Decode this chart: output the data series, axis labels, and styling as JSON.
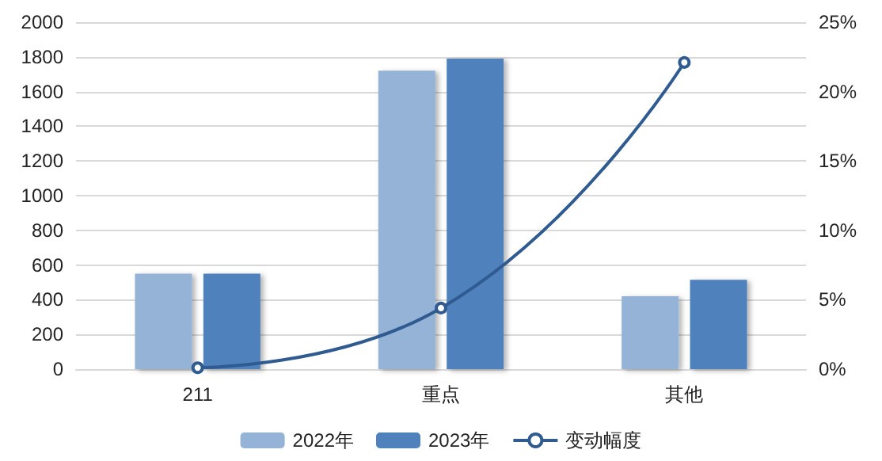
{
  "chart_data": {
    "type": "bar",
    "categories": [
      "211",
      "重点",
      "其他"
    ],
    "series": [
      {
        "name": "2022年",
        "color": "#95b3d7",
        "values": [
          550,
          1720,
          420
        ]
      },
      {
        "name": "2023年",
        "color": "#4f81bd",
        "values": [
          550,
          1790,
          515
        ]
      },
      {
        "name": "变动幅度",
        "type": "line",
        "axis": "y2",
        "color": "#2f5b91",
        "values": [
          0.1,
          4.4,
          22.1
        ],
        "marker": "circle"
      }
    ],
    "ylim": [
      0,
      2000
    ],
    "yticks": [
      0,
      200,
      400,
      600,
      800,
      1000,
      1200,
      1400,
      1600,
      1800,
      2000
    ],
    "y2lim": [
      0,
      25
    ],
    "y2ticks": [
      {
        "value": 0,
        "label": "0%"
      },
      {
        "value": 5,
        "label": "5%"
      },
      {
        "value": 10,
        "label": "10%"
      },
      {
        "value": 15,
        "label": "15%"
      },
      {
        "value": 20,
        "label": "20%"
      },
      {
        "value": 25,
        "label": "25%"
      }
    ],
    "grid": "y",
    "legend": "bottom"
  }
}
